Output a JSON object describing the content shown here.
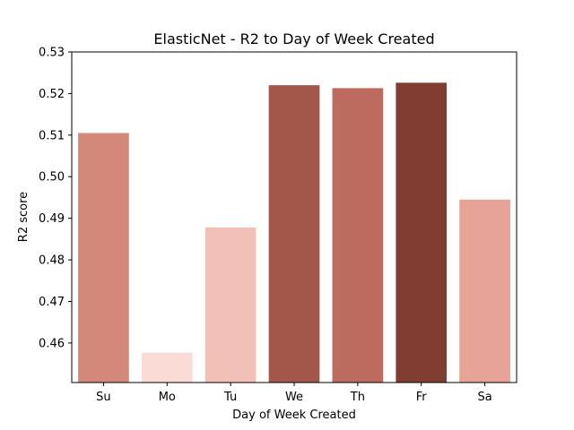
{
  "chart_data": {
    "type": "bar",
    "title": "ElasticNet - R2 to Day of Week Created",
    "xlabel": "Day of Week Created",
    "ylabel": "R2 score",
    "categories": [
      "Su",
      "Mo",
      "Tu",
      "We",
      "Th",
      "Fr",
      "Sa"
    ],
    "values": [
      0.5105,
      0.4577,
      0.4878,
      0.522,
      0.5213,
      0.5226,
      0.4945
    ],
    "colors": [
      "#d3887a",
      "#fadbd6",
      "#f2c0b6",
      "#a3564a",
      "#bd6b5f",
      "#823d33",
      "#e7a398"
    ],
    "ylim": [
      0.4505,
      0.53
    ],
    "yticks": [
      0.46,
      0.47,
      0.48,
      0.49,
      0.5,
      0.51,
      0.52,
      0.53
    ],
    "ytick_labels": [
      "0.46",
      "0.47",
      "0.48",
      "0.49",
      "0.50",
      "0.51",
      "0.52",
      "0.53"
    ],
    "grid": false,
    "legend": "none"
  }
}
